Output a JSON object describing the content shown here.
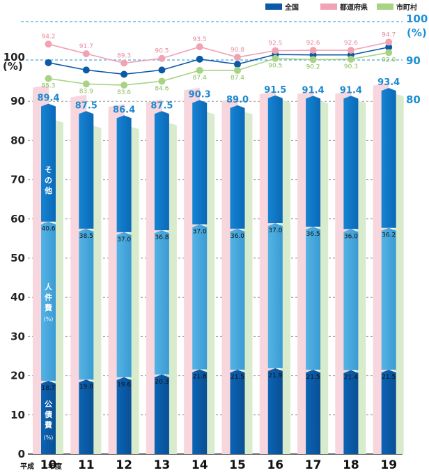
{
  "chart_data": {
    "type": "bar",
    "ylabel": "(%)",
    "ylim": [
      0,
      100
    ],
    "y_ticks": [
      "0",
      "10",
      "20",
      "30",
      "40",
      "50",
      "60",
      "70",
      "80",
      "90",
      "100"
    ],
    "right_axis": {
      "ticks": [
        "80",
        "90",
        "100"
      ],
      "unit": "(%)"
    },
    "x_prefix": "平成",
    "x_suffix": "年度",
    "categories": [
      "10",
      "11",
      "12",
      "13",
      "14",
      "15",
      "16",
      "17",
      "18",
      "19"
    ],
    "totals": [
      89.4,
      87.5,
      86.4,
      87.5,
      90.3,
      89.0,
      91.5,
      91.4,
      91.4,
      93.4
    ],
    "stacked_series": [
      {
        "name": "公債費",
        "unit": "(%)",
        "values": [
          18.7,
          19.0,
          19.6,
          20.3,
          21.6,
          21.5,
          21.9,
          21.5,
          21.4,
          21.5
        ],
        "color": "#0b5aa8"
      },
      {
        "name": "人件費",
        "unit": "(%)",
        "values": [
          40.6,
          38.5,
          37.0,
          36.8,
          37.0,
          36.0,
          37.0,
          36.5,
          36.0,
          36.2
        ],
        "color": "#44a7dc"
      },
      {
        "name": "その他",
        "values": [
          30.1,
          30.0,
          29.8,
          30.4,
          31.7,
          31.5,
          32.6,
          33.4,
          34.0,
          35.7
        ],
        "color": "#0a78c8"
      }
    ],
    "line_series": [
      {
        "name": "全国",
        "values": [
          89.4,
          87.5,
          86.4,
          87.5,
          90.3,
          89.0,
          91.5,
          91.4,
          91.4,
          93.4
        ],
        "color": "#0b5aa8",
        "show_labels": false
      },
      {
        "name": "都道府県",
        "values": [
          94.2,
          91.7,
          89.3,
          90.5,
          93.5,
          90.8,
          92.5,
          92.6,
          92.6,
          94.7
        ],
        "color": "#f0a3b3",
        "show_labels": true
      },
      {
        "name": "市町村",
        "values": [
          85.3,
          83.9,
          83.6,
          84.6,
          87.4,
          87.4,
          90.5,
          90.2,
          90.3,
          92.0
        ],
        "color": "#a8d384",
        "show_labels": true
      }
    ],
    "legend": [
      "全国",
      "都道府県",
      "市町村"
    ],
    "legend_position": "top-right",
    "grid": true
  }
}
